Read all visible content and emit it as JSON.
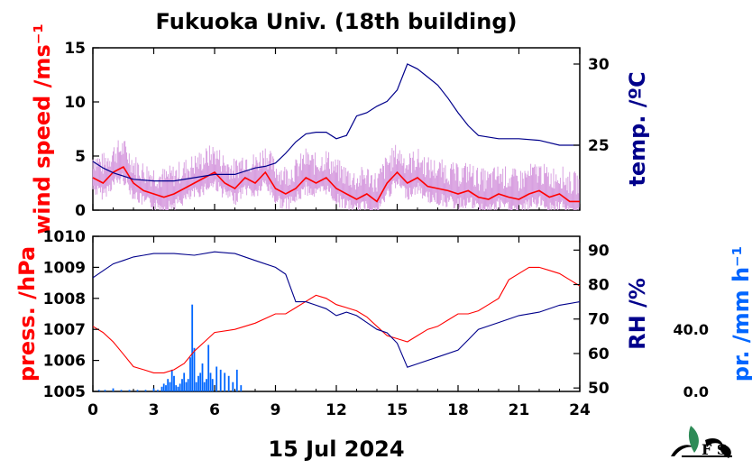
{
  "title": "Fukuoka Univ. (18th building)",
  "date_label": "15 Jul 2024",
  "colors": {
    "wind": "#ff0000",
    "wind_raw": "#d8a0e0",
    "temperature": "#00008b",
    "pressure": "#ff0000",
    "humidity": "#00008b",
    "precipitation": "#0066ff"
  },
  "logo_icon": "leaf-logo-icon",
  "chart_data": [
    {
      "type": "line",
      "panel": "top",
      "xlim": [
        0,
        24
      ],
      "x_ticks": [
        "0",
        "3",
        "6",
        "9",
        "12",
        "15",
        "18",
        "21",
        "24"
      ],
      "left_axis": {
        "label": "wind speed /ms⁻¹",
        "ylim": [
          0,
          15
        ],
        "ticks": [
          "0",
          "5",
          "10",
          "15"
        ]
      },
      "right_axis": {
        "label": "temp. /ºC",
        "ylim": [
          21,
          31
        ],
        "ticks": [
          "25",
          "30"
        ]
      },
      "series": [
        {
          "axis": "left",
          "x": [
            0,
            0.5,
            1,
            1.5,
            2,
            2.5,
            3,
            3.5,
            4,
            4.5,
            5,
            5.5,
            6,
            6.5,
            7,
            7.5,
            8,
            8.5,
            9,
            9.5,
            10,
            10.5,
            11,
            11.5,
            12,
            12.5,
            13,
            13.5,
            14,
            14.5,
            15,
            15.5,
            16,
            16.5,
            17,
            17.5,
            18,
            18.5,
            19,
            19.5,
            20,
            20.5,
            21,
            21.5,
            22,
            22.5,
            23,
            23.5,
            24
          ],
          "values": [
            3.0,
            2.5,
            3.5,
            4.0,
            2.5,
            1.8,
            1.5,
            1.2,
            1.5,
            2.0,
            2.5,
            3.0,
            3.5,
            2.5,
            2.0,
            3.0,
            2.5,
            3.5,
            2.0,
            1.5,
            2.0,
            3.0,
            2.5,
            3.0,
            2.0,
            1.5,
            1.0,
            1.5,
            0.8,
            2.5,
            3.5,
            2.5,
            3.0,
            2.2,
            2.0,
            1.8,
            1.5,
            1.8,
            1.2,
            1.0,
            1.5,
            1.2,
            1.0,
            1.5,
            1.8,
            1.2,
            1.5,
            0.8,
            0.8
          ]
        },
        {
          "axis": "right",
          "x": [
            0,
            0.5,
            1,
            1.5,
            2,
            3,
            4,
            5,
            6,
            7,
            8,
            8.5,
            9,
            9.5,
            10,
            10.5,
            11,
            11.5,
            12,
            12.5,
            13,
            13.5,
            14,
            14.5,
            15,
            15.5,
            16,
            16.5,
            17,
            17.5,
            18,
            18.5,
            19,
            20,
            21,
            22,
            23,
            24
          ],
          "values": [
            24.0,
            23.6,
            23.3,
            23.1,
            22.9,
            22.8,
            22.8,
            23.0,
            23.2,
            23.2,
            23.6,
            23.7,
            23.9,
            24.5,
            25.2,
            25.7,
            25.8,
            25.8,
            25.4,
            25.6,
            26.8,
            27.0,
            27.4,
            27.7,
            28.4,
            30.0,
            29.7,
            29.2,
            28.7,
            27.9,
            27.0,
            26.2,
            25.6,
            25.4,
            25.4,
            25.3,
            25.0,
            25.0
          ]
        }
      ]
    },
    {
      "type": "line",
      "panel": "bottom",
      "xlim": [
        0,
        24
      ],
      "x_ticks": [
        "0",
        "3",
        "6",
        "9",
        "12",
        "15",
        "18",
        "21",
        "24"
      ],
      "left_axis": {
        "label": "press. /hPa",
        "ylim": [
          1005,
          1010
        ],
        "ticks": [
          "1005",
          "1006",
          "1007",
          "1008",
          "1009",
          "1010"
        ]
      },
      "right_axis": {
        "label": "RH /%",
        "ylim": [
          49,
          94
        ],
        "ticks": [
          "50",
          "60",
          "70",
          "80",
          "90"
        ]
      },
      "precip_axis": {
        "label": "pr. /mm h⁻¹",
        "ticks": [
          "0.0",
          "40.0"
        ]
      },
      "series": [
        {
          "axis": "left",
          "x": [
            0,
            0.5,
            1,
            1.5,
            2,
            2.5,
            3,
            3.5,
            4,
            4.5,
            5,
            5.5,
            6,
            7,
            8,
            9,
            9.5,
            10,
            10.5,
            11,
            11.5,
            12,
            12.5,
            13,
            13.5,
            14,
            14.5,
            15,
            15.5,
            16,
            16.5,
            17,
            17.5,
            18,
            18.5,
            19,
            19.5,
            20,
            20.5,
            21,
            21.5,
            22,
            22.5,
            23,
            23.5,
            24
          ],
          "values": [
            1007.1,
            1006.9,
            1006.6,
            1006.2,
            1005.8,
            1005.7,
            1005.6,
            1005.6,
            1005.7,
            1005.9,
            1006.3,
            1006.6,
            1006.9,
            1007.0,
            1007.2,
            1007.5,
            1007.5,
            1007.7,
            1007.9,
            1008.1,
            1008.0,
            1007.8,
            1007.7,
            1007.6,
            1007.4,
            1007.1,
            1006.8,
            1006.7,
            1006.6,
            1006.8,
            1007.0,
            1007.1,
            1007.3,
            1007.5,
            1007.5,
            1007.6,
            1007.8,
            1008.0,
            1008.6,
            1008.8,
            1009.0,
            1009.0,
            1008.9,
            1008.8,
            1008.6,
            1008.4
          ]
        },
        {
          "axis": "right",
          "x": [
            0,
            0.5,
            1,
            1.5,
            2,
            2.5,
            3,
            4,
            5,
            6,
            7,
            8,
            9,
            9.5,
            10,
            10.5,
            11,
            11.5,
            12,
            12.5,
            13,
            13.5,
            14,
            14.5,
            15,
            15.5,
            16,
            17,
            18,
            18.5,
            19,
            20,
            21,
            22,
            23,
            24
          ],
          "values": [
            82,
            84,
            86,
            87,
            88,
            88.5,
            89,
            89,
            88.5,
            89.5,
            89,
            87,
            85,
            83,
            75,
            75,
            74,
            73,
            71,
            72,
            71,
            69,
            67,
            66,
            63,
            56,
            57,
            59,
            61,
            64,
            67,
            69,
            71,
            72,
            74,
            75
          ]
        },
        {
          "type": "bar",
          "axis": "precip",
          "bar_width": 0.08,
          "x": [
            0.3,
            0.6,
            1.0,
            1.4,
            1.8,
            2.2,
            2.6,
            3.0,
            3.2,
            3.4,
            3.5,
            3.6,
            3.7,
            3.8,
            3.9,
            4.0,
            4.1,
            4.2,
            4.3,
            4.4,
            4.5,
            4.6,
            4.7,
            4.8,
            4.9,
            5.0,
            5.1,
            5.2,
            5.3,
            5.4,
            5.5,
            5.6,
            5.7,
            5.8,
            5.9,
            6.1,
            6.3,
            6.5,
            6.7,
            6.9,
            7.1,
            7.3
          ],
          "values": [
            1,
            1,
            2,
            1,
            1,
            1,
            1,
            2,
            1,
            3,
            5,
            4,
            8,
            6,
            14,
            10,
            4,
            3,
            5,
            8,
            12,
            6,
            8,
            22,
            56,
            28,
            6,
            10,
            12,
            18,
            6,
            8,
            30,
            12,
            8,
            16,
            14,
            12,
            10,
            6,
            14,
            4
          ]
        }
      ]
    }
  ]
}
